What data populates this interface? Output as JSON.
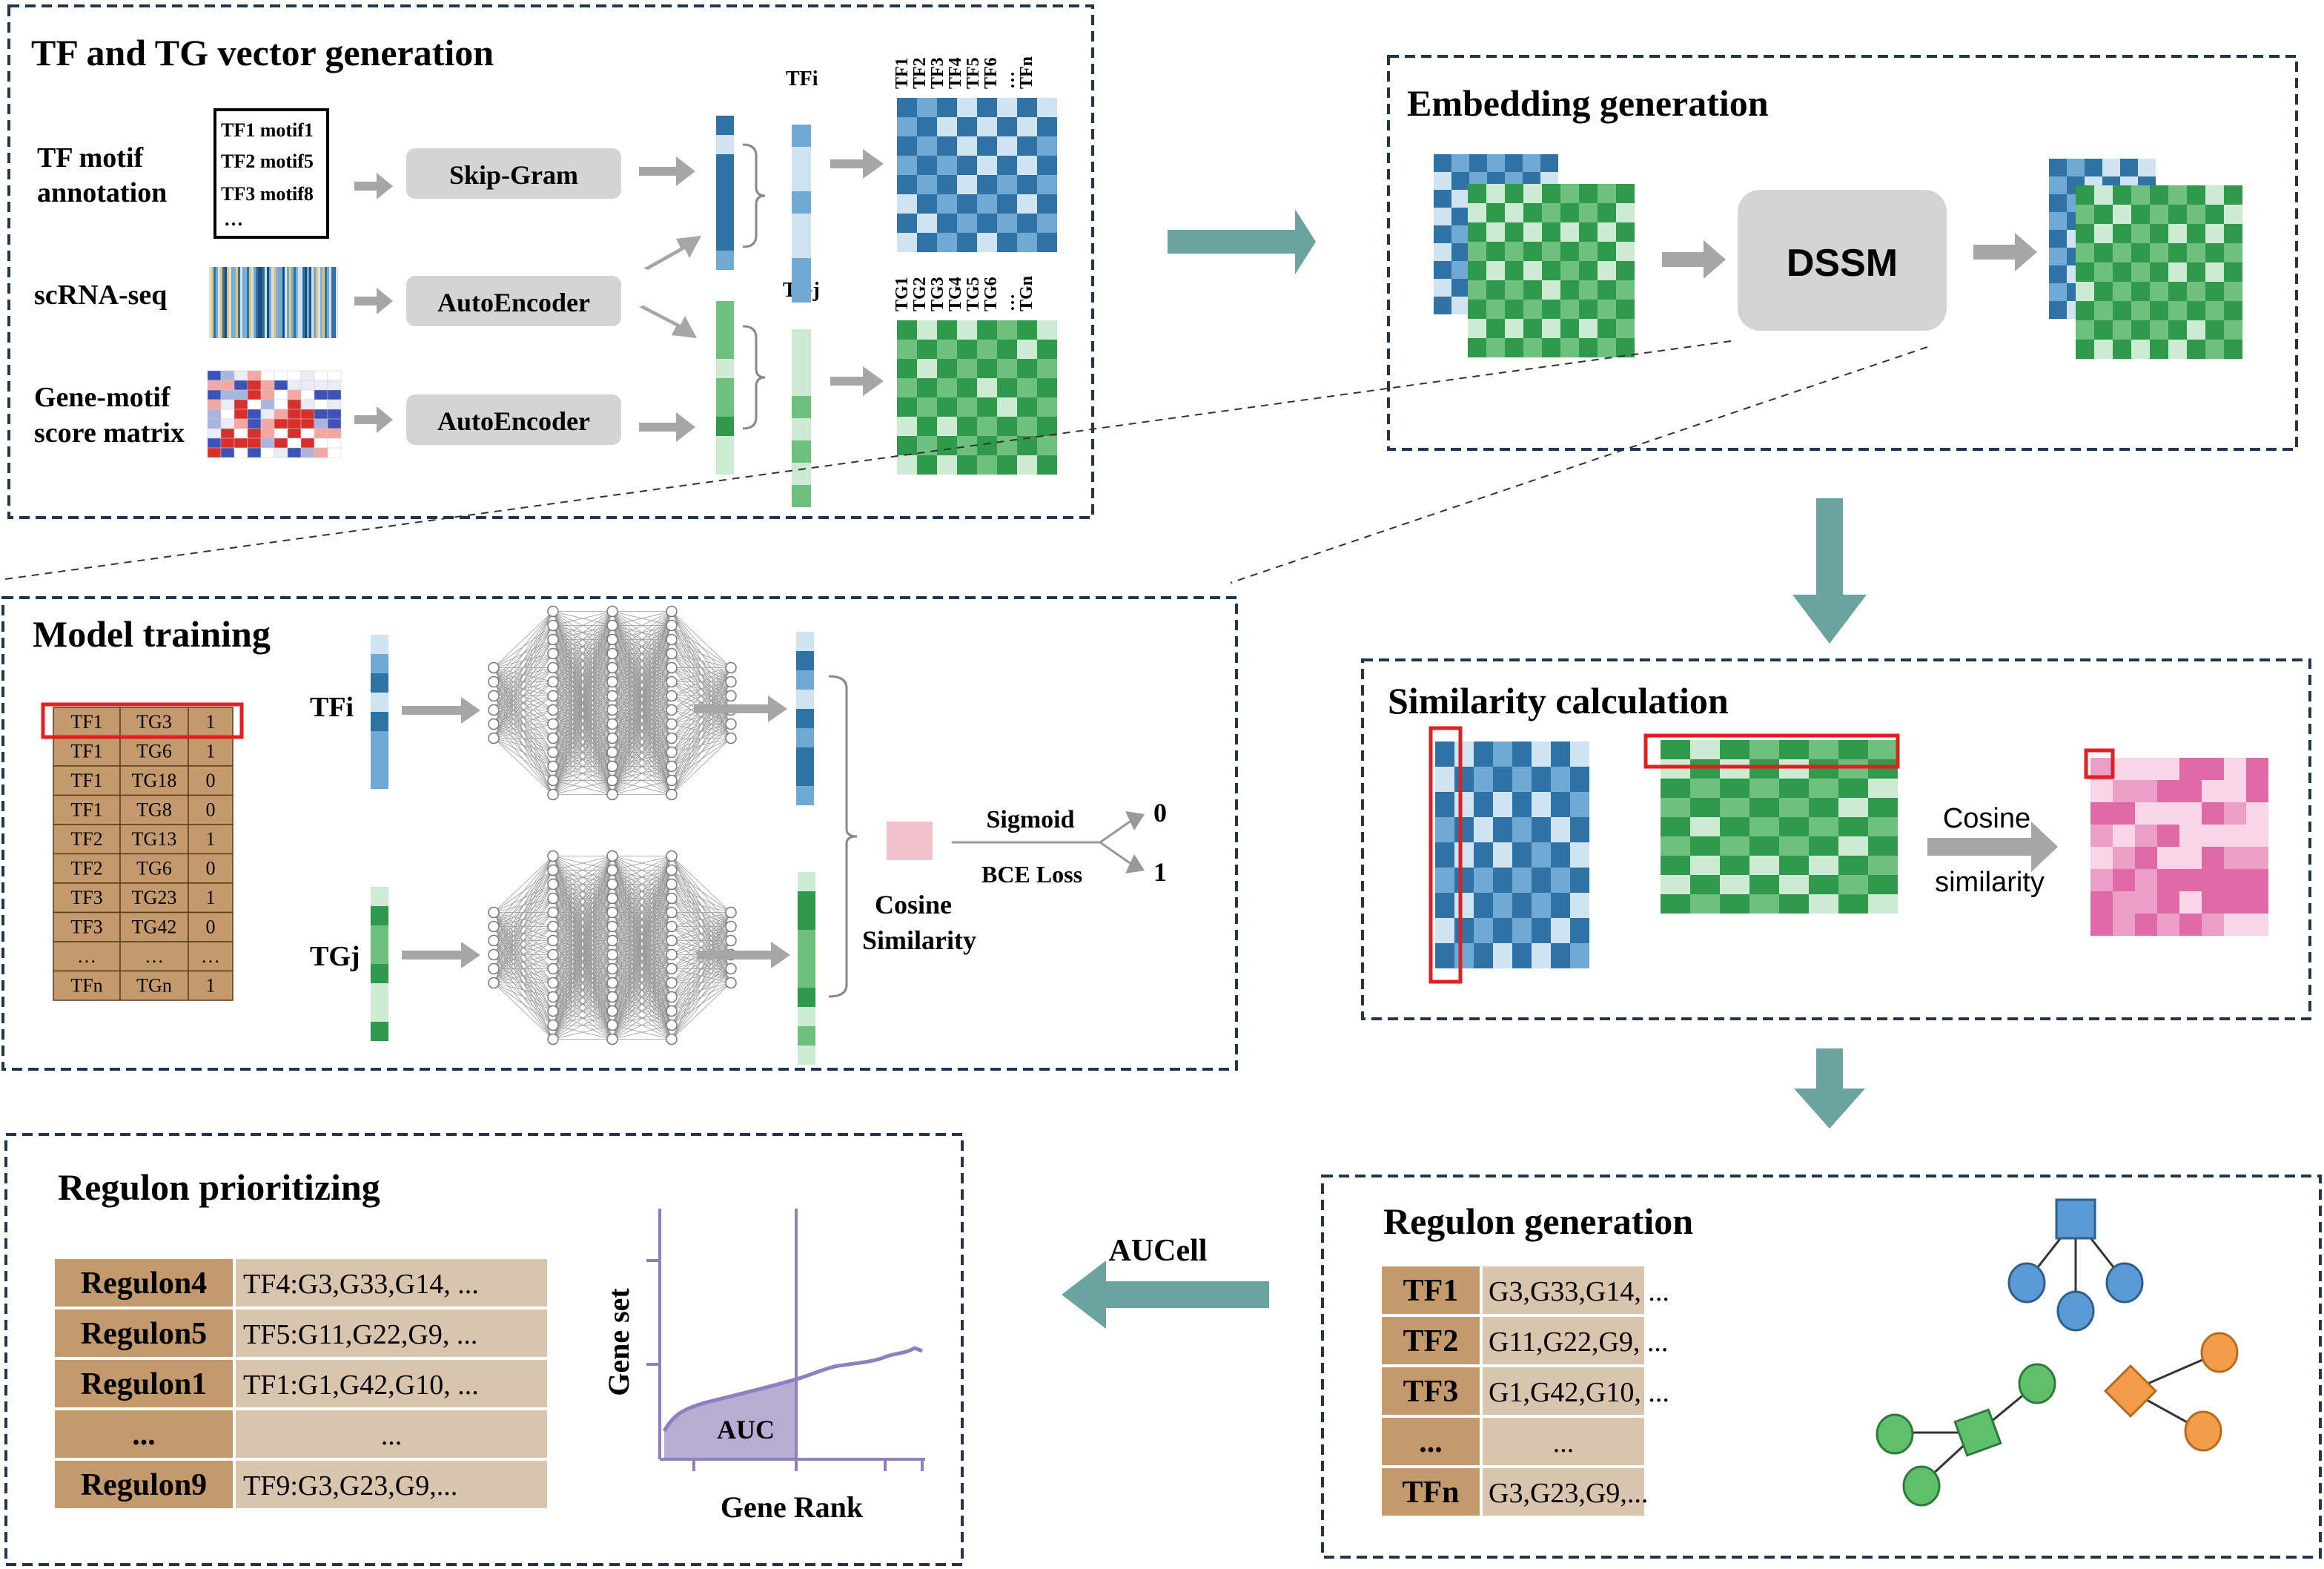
{
  "colors": {
    "panel_border": "#1f3550",
    "arrow_teal": "#6aa3a0",
    "arrow_gray": "#a6a6a6",
    "blue_dark": "#2e72a6",
    "blue_mid": "#6fa9d4",
    "blue_light": "#cfe3f1",
    "green_dark": "#2f9a4c",
    "green_mid": "#6fc07f",
    "green_light": "#cdebd2",
    "pink_dark": "#e06aa8",
    "pink_mid": "#ec9fc6",
    "pink_light": "#f8d6e7",
    "table_brown": "#c49a6c",
    "table_tan": "#d9c4ad",
    "red_box": "#e02020",
    "auc_fill": "#b7acd2",
    "auc_line": "#8f7fc0"
  },
  "panels": {
    "tf_tg": {
      "title": "TF and TG vector generation",
      "inputs": [
        {
          "label_lines": [
            "TF motif",
            "annotation"
          ],
          "process": "Skip-Gram"
        },
        {
          "label_lines": [
            "scRNA-seq"
          ],
          "process": "AutoEncoder"
        },
        {
          "label_lines": [
            "Gene-motif",
            "score matrix"
          ],
          "process": "AutoEncoder"
        }
      ],
      "motif_list": [
        "TF1 motif1",
        "TF2 motif5",
        "TF3 motif8",
        "…"
      ],
      "tfi_label": "TFi",
      "tgj_label": "TGj",
      "tf_cols": [
        "TF1",
        "TF2",
        "TF3",
        "TF4",
        "TF5",
        "TF6",
        "…",
        "TFn"
      ],
      "tg_cols": [
        "TG1",
        "TG2",
        "TG3",
        "TG4",
        "TG5",
        "TG6",
        "…",
        "TGn"
      ]
    },
    "embedding": {
      "title": "Embedding generation",
      "model": "DSSM"
    },
    "model_training": {
      "title": "Model training",
      "pairs": [
        [
          "TF1",
          "TG3",
          "1"
        ],
        [
          "TF1",
          "TG6",
          "1"
        ],
        [
          "TF1",
          "TG18",
          "0"
        ],
        [
          "TF1",
          "TG8",
          "0"
        ],
        [
          "TF2",
          "TG13",
          "1"
        ],
        [
          "TF2",
          "TG6",
          "0"
        ],
        [
          "TF3",
          "TG23",
          "1"
        ],
        [
          "TF3",
          "TG42",
          "0"
        ],
        [
          "…",
          "…",
          "…"
        ],
        [
          "TFn",
          "TGn",
          "1"
        ]
      ],
      "tfi_label": "TFi",
      "tgj_label": "TGj",
      "cosine_lines": [
        "Cosine",
        "Similarity"
      ],
      "sigmoid": "Sigmoid",
      "bce": "BCE Loss",
      "out0": "0",
      "out1": "1"
    },
    "similarity": {
      "title": "Similarity calculation",
      "cosine_lines": [
        "Cosine",
        "similarity"
      ]
    },
    "regulon_gen": {
      "title": "Regulon generation",
      "rows": [
        {
          "tf": "TF1",
          "genes": "G3,G33,G14, ..."
        },
        {
          "tf": "TF2",
          "genes": "G11,G22,G9, ..."
        },
        {
          "tf": "TF3",
          "genes": "G1,G42,G10, ..."
        },
        {
          "tf": "...",
          "genes": "..."
        },
        {
          "tf": "TFn",
          "genes": "G3,G23,G9,..."
        }
      ]
    },
    "regulon_prior": {
      "title": "Regulon prioritizing",
      "rows": [
        {
          "name": "Regulon4",
          "genes": "TF4:G3,G33,G14, ..."
        },
        {
          "name": "Regulon5",
          "genes": "TF5:G11,G22,G9, ..."
        },
        {
          "name": "Regulon1",
          "genes": "TF1:G1,G42,G10, ..."
        },
        {
          "name": "...",
          "genes": "..."
        },
        {
          "name": "Regulon9",
          "genes": "TF9:G3,G23,G9,..."
        }
      ],
      "ylabel": "Gene set",
      "xlabel": "Gene Rank",
      "auc": "AUC"
    }
  },
  "aucell_label": "AUCell"
}
